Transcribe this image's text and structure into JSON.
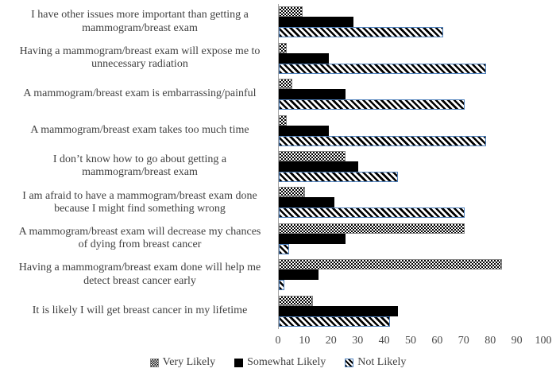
{
  "chart_data": {
    "type": "bar",
    "orientation": "horizontal",
    "categories": [
      "I have other issues more important than getting a\nmammogram/breast exam",
      "Having a mammogram/breast exam will expose me to\nunnecessary radiation",
      "A mammogram/breast exam is embarrassing/painful",
      "A mammogram/breast exam takes too much time",
      "I don’t know how to go about getting a\nmammogram/breast exam",
      "I am afraid to have a mammogram/breast exam done\nbecause I might find something wrong",
      "A mammogram/breast exam will decrease my chances\nof dying from breast cancer",
      "Having a mammogram/breast exam done will help me\ndetect breast cancer early",
      "It is likely I will get breast cancer in my lifetime"
    ],
    "series": [
      {
        "name": "Very Likely",
        "pattern": "dots",
        "values": [
          9,
          3,
          5,
          3,
          25,
          10,
          70,
          84,
          13
        ]
      },
      {
        "name": "Somewhat Likely",
        "pattern": "solid",
        "values": [
          28,
          19,
          25,
          19,
          30,
          21,
          25,
          15,
          45
        ]
      },
      {
        "name": "Not Likely",
        "pattern": "stripes",
        "values": [
          62,
          78,
          70,
          78,
          45,
          70,
          4,
          2,
          42
        ]
      }
    ],
    "xlim": [
      0,
      100
    ],
    "x_ticks": [
      0,
      10,
      20,
      30,
      40,
      50,
      60,
      70,
      80,
      90,
      100
    ],
    "grid": false,
    "legend_position": "bottom",
    "colors": {
      "bar_fill": "#000000",
      "stripe_border": "#4f81bd",
      "dot_border": "#808080",
      "axis_line": "#a6a6a6",
      "text": "#3f3f3f"
    }
  }
}
